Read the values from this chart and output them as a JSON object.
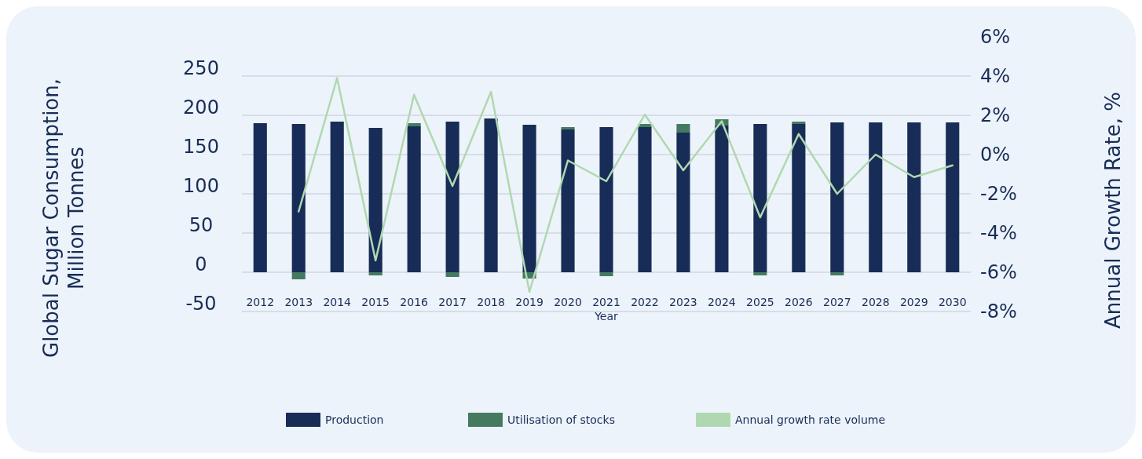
{
  "chart_data": {
    "type": "bar",
    "stacked": true,
    "xlabel": "Year",
    "ylabel": "Global Sugar Consumption, Million Tonnes",
    "y2label": "Annual Growth Rate, %",
    "categories": [
      "2012",
      "2013",
      "2014",
      "2015",
      "2016",
      "2017",
      "2018",
      "2019",
      "2020",
      "2021",
      "2022",
      "2023",
      "2024",
      "2025",
      "2026",
      "2027",
      "2028",
      "2029",
      "2030"
    ],
    "series": [
      {
        "name": "Production",
        "color": "#172d57",
        "values": [
          190,
          189,
          192,
          184,
          186,
          192,
          196,
          188,
          182,
          185,
          185,
          178,
          187,
          189,
          189,
          191,
          191,
          191,
          191
        ]
      },
      {
        "name": "Utilisation of stocks",
        "color": "#457a61",
        "values": [
          0,
          -9,
          0,
          -4,
          4,
          -6,
          0,
          -8,
          3,
          -5,
          4,
          11,
          8,
          -4,
          3,
          -4,
          0,
          0,
          0
        ]
      },
      {
        "name": "Annual growth rate volume",
        "type": "line",
        "axis": "y2",
        "color": "#b0d8b0",
        "values": [
          null,
          -2.9,
          3.9,
          -5.4,
          3.05,
          -1.6,
          3.2,
          -7.0,
          -0.3,
          -1.36,
          2.04,
          -0.8,
          1.7,
          -3.2,
          1.05,
          -2.0,
          0,
          -1.15,
          -0.55
        ]
      }
    ],
    "ylim": [
      -50,
      250
    ],
    "yticks": [
      -50,
      0,
      50,
      100,
      150,
      200,
      250
    ],
    "y2lim": [
      -8,
      6
    ],
    "y2ticks": [
      {
        "value": -8,
        "label": "-8%"
      },
      {
        "value": -6,
        "label": "-6%"
      },
      {
        "value": -4,
        "label": "-4%"
      },
      {
        "value": -2,
        "label": "-2%"
      },
      {
        "value": 0,
        "label": "0%"
      },
      {
        "value": 2,
        "label": "2%"
      },
      {
        "value": 4,
        "label": "4%"
      },
      {
        "value": 6,
        "label": "6%"
      }
    ],
    "grid": "y",
    "legend": "bottom",
    "marker": "none",
    "line_style": "solid"
  }
}
